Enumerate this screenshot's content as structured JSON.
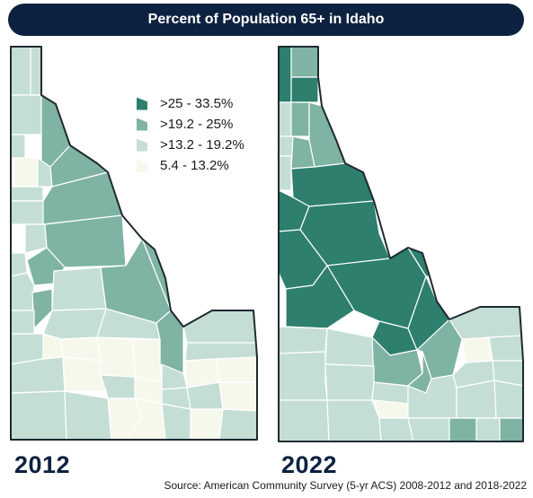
{
  "title": "Percent of Population 65+ in Idaho",
  "legend": {
    "items": [
      {
        "label": ">25 - 33.5%",
        "color": "#2e7f6d"
      },
      {
        "label": ">19.2 - 25%",
        "color": "#7fb3a3"
      },
      {
        "label": ">13.2 - 19.2%",
        "color": "#c4ded5"
      },
      {
        "label": "5.4 - 13.2%",
        "color": "#f6f8ec"
      }
    ]
  },
  "maps": [
    {
      "year": "2012"
    },
    {
      "year": "2022"
    }
  ],
  "source": "Source: American Community Survey (5-yr ACS) 2008-2012 and 2018-2022"
}
